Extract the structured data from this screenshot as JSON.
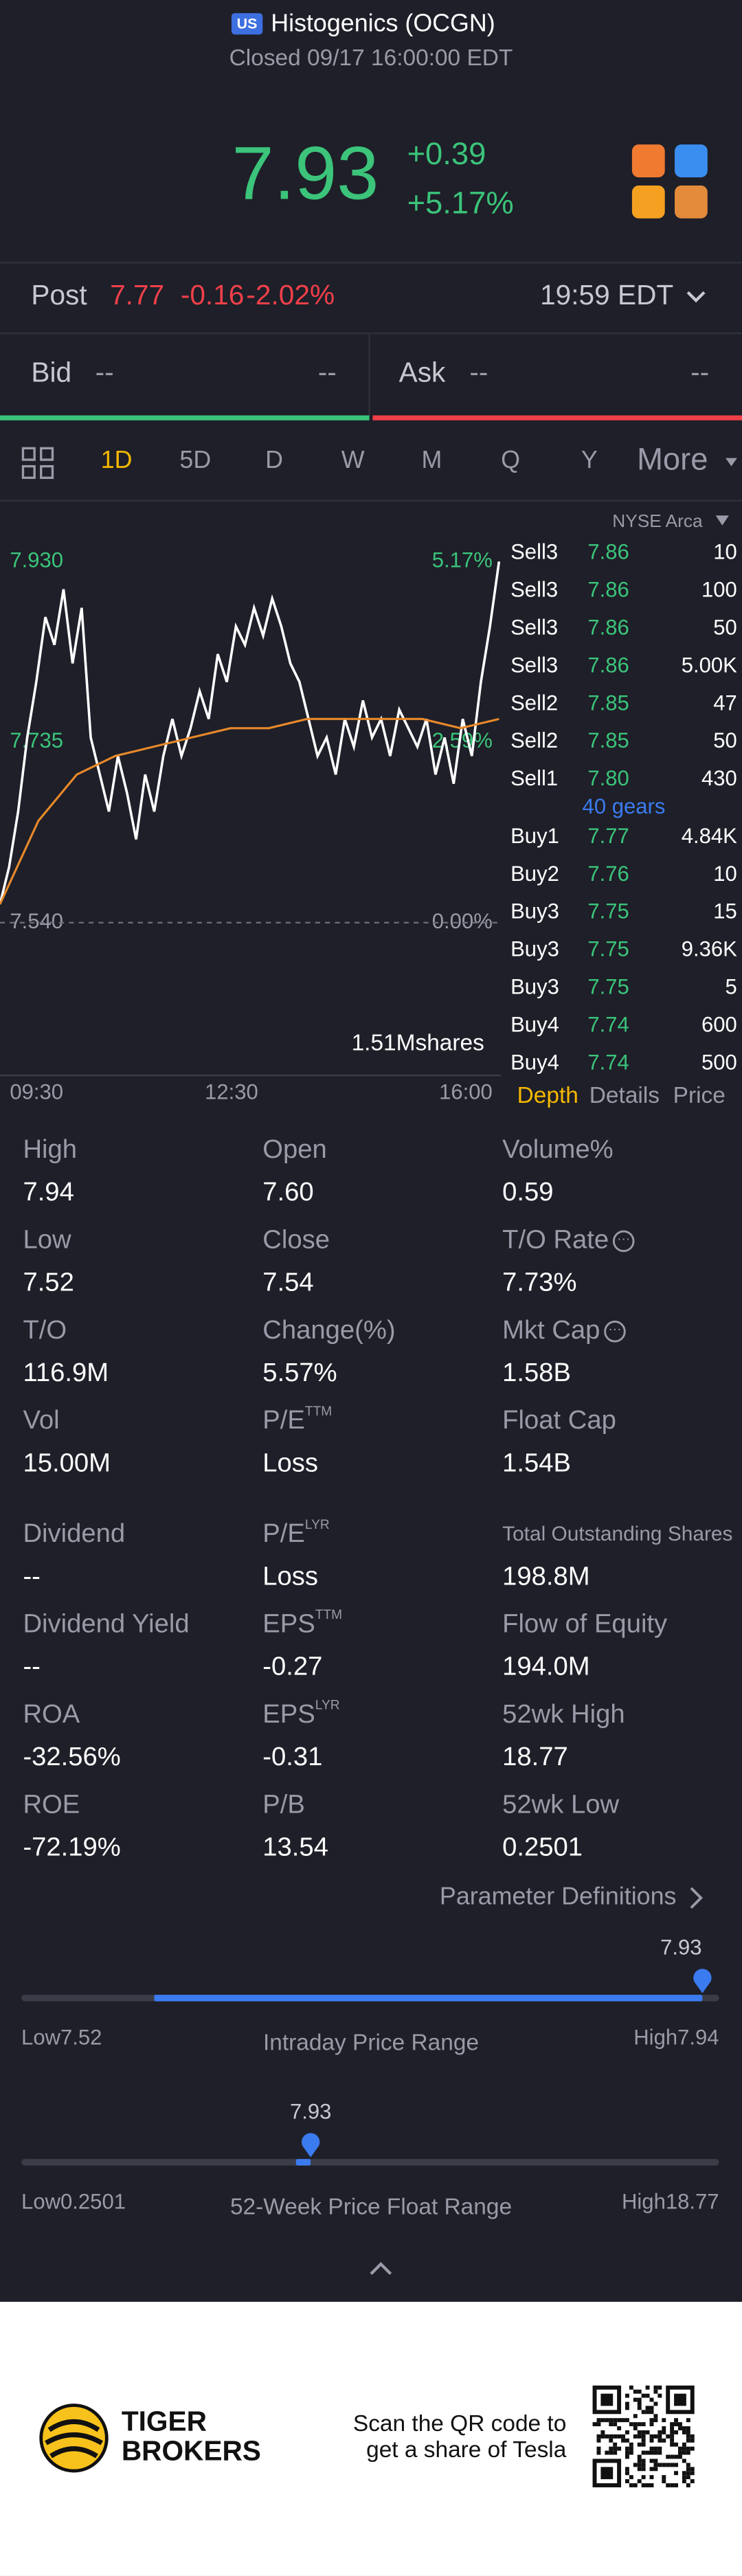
{
  "header": {
    "badge": "US",
    "name": "Histogenics (OCGN)",
    "status": "Closed 09/17 16:00:00 EDT"
  },
  "quote": {
    "price": "7.93",
    "change": "+0.39",
    "change_pct": "+5.17%"
  },
  "post": {
    "label": "Post",
    "price": "7.77",
    "change": "-0.16",
    "change_pct": "-2.02%",
    "time": "19:59 EDT"
  },
  "bidask": {
    "bid_label": "Bid",
    "bid": "--",
    "bid_size": "--",
    "ask_label": "Ask",
    "ask": "--",
    "ask_size": "--"
  },
  "tabs": {
    "items": [
      "1D",
      "5D",
      "D",
      "W",
      "M",
      "Q",
      "Y",
      "More"
    ],
    "active": 0
  },
  "chart": {
    "type": "line",
    "ylim": [
      7.54,
      7.93
    ],
    "yticks": [
      {
        "value": 7.93,
        "label": "7.930"
      },
      {
        "value": 7.735,
        "label": "7.735"
      },
      {
        "value": 7.54,
        "label": "7.540"
      }
    ],
    "pct_labels": [
      "5.17%",
      "2.59%",
      "0.00%"
    ],
    "x_labels": [
      "09:30",
      "12:30",
      "16:00"
    ],
    "volume_label": "1.51Mshares",
    "series": [
      {
        "name": "price",
        "color": "#ffffff",
        "values": [
          7.56,
          7.6,
          7.66,
          7.74,
          7.8,
          7.87,
          7.84,
          7.9,
          7.82,
          7.88,
          7.74,
          7.7,
          7.66,
          7.72,
          7.68,
          7.63,
          7.7,
          7.66,
          7.72,
          7.76,
          7.72,
          7.75,
          7.79,
          7.76,
          7.83,
          7.8,
          7.86,
          7.84,
          7.88,
          7.85,
          7.89,
          7.86,
          7.82,
          7.8,
          7.76,
          7.72,
          7.74,
          7.7,
          7.76,
          7.73,
          7.78,
          7.74,
          7.76,
          7.72,
          7.77,
          7.75,
          7.73,
          7.76,
          7.7,
          7.74,
          7.69,
          7.76,
          7.72,
          7.8,
          7.86,
          7.93
        ]
      },
      {
        "name": "average",
        "color": "#e8892b",
        "values": [
          7.56,
          7.65,
          7.7,
          7.72,
          7.73,
          7.74,
          7.75,
          7.75,
          7.76,
          7.76,
          7.76,
          7.76,
          7.75,
          7.76
        ]
      }
    ]
  },
  "book": {
    "exchange": "NYSE Arca",
    "sell": [
      [
        "Sell3",
        "7.86",
        "10"
      ],
      [
        "Sell3",
        "7.86",
        "100"
      ],
      [
        "Sell3",
        "7.86",
        "50"
      ],
      [
        "Sell3",
        "7.86",
        "5.00K"
      ],
      [
        "Sell2",
        "7.85",
        "47"
      ],
      [
        "Sell2",
        "7.85",
        "50"
      ],
      [
        "Sell1",
        "7.80",
        "430"
      ]
    ],
    "gears": "40 gears",
    "buy": [
      [
        "Buy1",
        "7.77",
        "4.84K"
      ],
      [
        "Buy2",
        "7.76",
        "10"
      ],
      [
        "Buy3",
        "7.75",
        "15"
      ],
      [
        "Buy3",
        "7.75",
        "9.36K"
      ],
      [
        "Buy3",
        "7.75",
        "5"
      ],
      [
        "Buy4",
        "7.74",
        "600"
      ],
      [
        "Buy4",
        "7.74",
        "500"
      ]
    ],
    "tabs": [
      "Depth",
      "Details",
      "Price"
    ],
    "active": 0
  },
  "stats": {
    "rows": [
      [
        {
          "label": "High",
          "value": "7.94"
        },
        {
          "label": "Open",
          "value": "7.60"
        },
        {
          "label": "Volume%",
          "value": "0.59"
        }
      ],
      [
        {
          "label": "Low",
          "value": "7.52"
        },
        {
          "label": "Close",
          "value": "7.54"
        },
        {
          "label": "T/O Rate",
          "value": "7.73%",
          "info": true
        }
      ],
      [
        {
          "label": "T/O",
          "value": "116.9M"
        },
        {
          "label": "Change(%)",
          "value": "5.57%"
        },
        {
          "label": "Mkt Cap",
          "value": "1.58B",
          "info": true
        }
      ],
      [
        {
          "label": "Vol",
          "value": "15.00M"
        },
        {
          "label": "P/E",
          "sup": "TTM",
          "value": "Loss"
        },
        {
          "label": "Float Cap",
          "value": "1.54B"
        }
      ],
      [
        {
          "label": "Dividend",
          "value": "--"
        },
        {
          "label": "P/E",
          "sup": "LYR",
          "value": "Loss"
        },
        {
          "label": "Total Outstanding Shares",
          "value": "198.8M",
          "small": true
        }
      ],
      [
        {
          "label": "Dividend Yield",
          "value": "--"
        },
        {
          "label": "EPS",
          "sup": "TTM",
          "value": "-0.27"
        },
        {
          "label": "Flow of Equity",
          "value": "194.0M"
        }
      ],
      [
        {
          "label": "ROA",
          "value": "-32.56%"
        },
        {
          "label": "EPS",
          "sup": "LYR",
          "value": "-0.31"
        },
        {
          "label": "52wk High",
          "value": "18.77"
        }
      ],
      [
        {
          "label": "ROE",
          "value": "-72.19%"
        },
        {
          "label": "P/B",
          "value": "13.54"
        },
        {
          "label": "52wk Low",
          "value": "0.2501"
        }
      ]
    ]
  },
  "definitions": "Parameter Definitions",
  "ranges": [
    {
      "marker": "7.93",
      "low_label": "Low",
      "low": "7.52",
      "title": "Intraday Price Range",
      "high_label": "High",
      "high": "7.94"
    },
    {
      "marker": "7.93",
      "low_label": "Low",
      "low": "0.2501",
      "title": "52-Week Price Float Range",
      "high_label": "High",
      "high": "18.77"
    }
  ],
  "footer": {
    "brand1": "TIGER",
    "brand2": "BROKERS",
    "scan1": "Scan the QR code to",
    "scan2": "get a share of Tesla"
  }
}
